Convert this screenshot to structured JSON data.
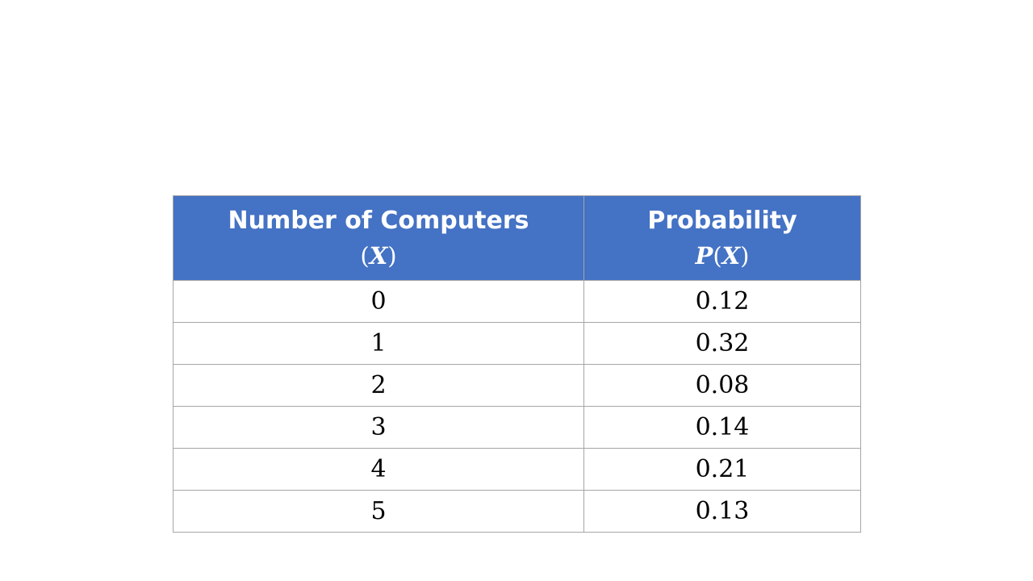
{
  "chart_data": {
    "type": "table",
    "columns": [
      {
        "label": "Number of Computers",
        "symbol_open": "(",
        "symbol_var": "X",
        "symbol_close": ")"
      },
      {
        "label": "Probability",
        "symbol_prefix": "P",
        "symbol_open": "(",
        "symbol_var": "X",
        "symbol_close": ")"
      }
    ],
    "rows": [
      {
        "x": "0",
        "p": "0.12"
      },
      {
        "x": "1",
        "p": "0.32"
      },
      {
        "x": "2",
        "p": "0.08"
      },
      {
        "x": "3",
        "p": "0.14"
      },
      {
        "x": "4",
        "p": "0.21"
      },
      {
        "x": "5",
        "p": "0.13"
      }
    ],
    "colors": {
      "header_background": "#4472c4",
      "header_text": "#ffffff",
      "border": "#a6a6a6"
    }
  }
}
